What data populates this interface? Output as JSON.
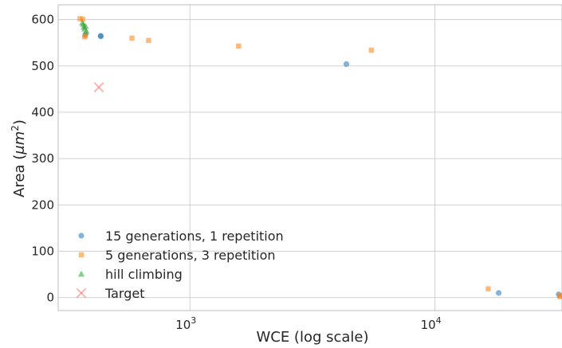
{
  "chart_data": {
    "type": "scatter",
    "title": "",
    "xlabel": "WCE  (log scale)",
    "ylabel_main": "Area (",
    "ylabel_unit_main": "μm",
    "ylabel_unit_exp": "2",
    "ylabel_tail": ")",
    "xscale": "log",
    "xlim": [
      290,
      33000
    ],
    "ylim": [
      -28,
      632
    ],
    "grid": true,
    "legend_position": "lower-left",
    "x_ticks": [
      {
        "value": 1000,
        "base": "10",
        "exp": "3"
      },
      {
        "value": 10000,
        "base": "10",
        "exp": "4"
      }
    ],
    "y_ticks": [
      0,
      100,
      200,
      300,
      400,
      500,
      600
    ],
    "series": [
      {
        "name": "15 generations, 1 repetition",
        "marker": "circle",
        "color": "#1f77b4",
        "points": [
          {
            "x": 375,
            "y": 568
          },
          {
            "x": 432,
            "y": 565
          },
          {
            "x": 433,
            "y": 564
          },
          {
            "x": 4350,
            "y": 504
          },
          {
            "x": 18200,
            "y": 10
          },
          {
            "x": 32000,
            "y": 7
          }
        ]
      },
      {
        "name": "5 generations, 3 repetition",
        "marker": "square",
        "color": "#ff7f0e",
        "points": [
          {
            "x": 356,
            "y": 602
          },
          {
            "x": 365,
            "y": 601
          },
          {
            "x": 372,
            "y": 563
          },
          {
            "x": 374,
            "y": 566
          },
          {
            "x": 580,
            "y": 560
          },
          {
            "x": 678,
            "y": 555
          },
          {
            "x": 1580,
            "y": 543
          },
          {
            "x": 5500,
            "y": 534
          },
          {
            "x": 16500,
            "y": 19
          },
          {
            "x": 32300,
            "y": 4
          },
          {
            "x": 32400,
            "y": 2
          }
        ]
      },
      {
        "name": "hill climbing",
        "marker": "triangle",
        "color": "#2ca02c",
        "points": [
          {
            "x": 364,
            "y": 593
          },
          {
            "x": 367,
            "y": 590
          },
          {
            "x": 369,
            "y": 584
          },
          {
            "x": 372,
            "y": 580
          },
          {
            "x": 375,
            "y": 586
          },
          {
            "x": 378,
            "y": 575
          }
        ]
      },
      {
        "name": "Target",
        "marker": "x",
        "color": "#ff6b6b",
        "points": [
          {
            "x": 425,
            "y": 454
          }
        ]
      }
    ]
  }
}
